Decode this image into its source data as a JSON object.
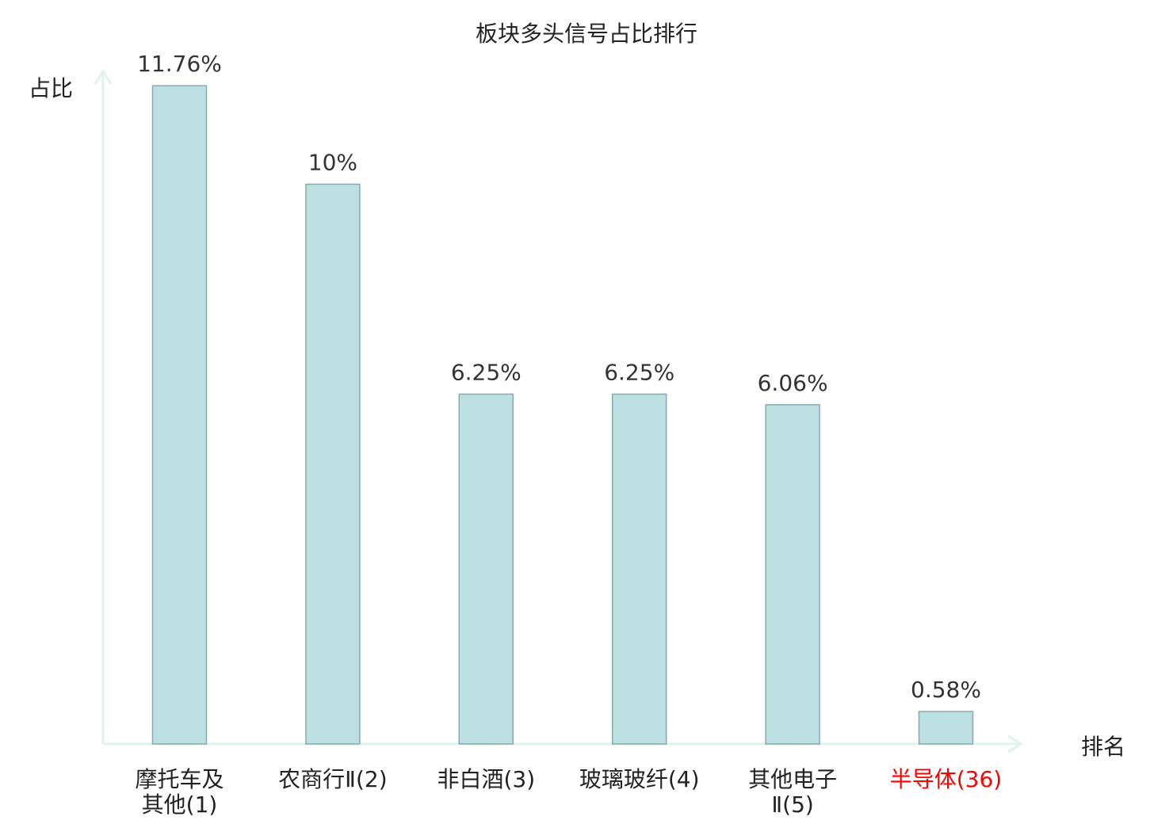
{
  "chart_data": {
    "type": "bar",
    "title": "板块多头信号占比排行",
    "xlabel": "排名",
    "ylabel": "占比",
    "categories": [
      "摩托车及其他(1)",
      "农商行Ⅱ(2)",
      "非白酒(3)",
      "玻璃玻纤(4)",
      "其他电子Ⅱ(5)",
      "半导体(36)"
    ],
    "values": [
      11.76,
      10,
      6.25,
      6.25,
      6.06,
      0.58
    ],
    "data_labels": [
      "11.76%",
      "10%",
      "6.25%",
      "6.25%",
      "6.06%",
      "0.58%"
    ],
    "highlight_category": "半导体(36)",
    "ylim": [
      0,
      12
    ],
    "grid": false,
    "legend": "none",
    "colors": {
      "bar_fill": "#bde0e3",
      "bar_stroke": "#88a9ac",
      "axis": "#dff2ef",
      "highlight_text": "#ff0000",
      "text": "#222222",
      "data_label": "#333333"
    }
  }
}
